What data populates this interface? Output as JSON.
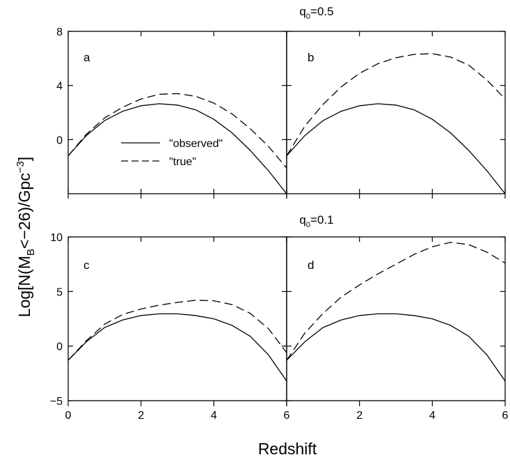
{
  "figure": {
    "ylabel_main": "Log[N(M",
    "ylabel_sub": "B",
    "ylabel_mid": "<−26)/Gpc",
    "ylabel_sup": "−3",
    "ylabel_end": "]",
    "xlabel": "Redshift",
    "rows": [
      {
        "title_main": "q",
        "title_sub": "0",
        "title_rest": "=0.5"
      },
      {
        "title_main": "q",
        "title_sub": "0",
        "title_rest": "=0.1"
      }
    ]
  },
  "chart_data": [
    {
      "type": "line",
      "panel_label": "a",
      "xlim": [
        0,
        6
      ],
      "ylim": [
        -4,
        8
      ],
      "xticks": [
        0,
        2,
        4,
        6
      ],
      "yticks": [
        0,
        4,
        8
      ],
      "ytick_labels": [
        "0",
        "4",
        "8"
      ],
      "xtick_labels": [],
      "legend": {
        "position": "center-left",
        "entries": [
          "\"observed\"",
          "\"true\""
        ]
      },
      "series": [
        {
          "name": "\"observed\"",
          "style": "solid",
          "x": [
            0,
            0.5,
            1,
            1.5,
            2,
            2.5,
            3,
            3.5,
            4,
            4.5,
            5,
            5.5,
            6
          ],
          "y": [
            -1.2,
            0.3,
            1.4,
            2.1,
            2.5,
            2.65,
            2.55,
            2.2,
            1.5,
            0.5,
            -0.8,
            -2.3,
            -4.0
          ]
        },
        {
          "name": "\"true\"",
          "style": "dashed",
          "x": [
            0,
            0.5,
            1,
            1.5,
            2,
            2.5,
            3,
            3.5,
            4,
            4.5,
            5,
            5.5,
            6
          ],
          "y": [
            -1.2,
            0.4,
            1.6,
            2.4,
            3.0,
            3.35,
            3.4,
            3.2,
            2.7,
            1.9,
            0.8,
            -0.5,
            -2.1
          ]
        }
      ]
    },
    {
      "type": "line",
      "panel_label": "b",
      "xlim": [
        0,
        6
      ],
      "ylim": [
        -4,
        8
      ],
      "xticks": [
        0,
        2,
        4,
        6
      ],
      "yticks": [
        0,
        4,
        8
      ],
      "ytick_labels": [],
      "xtick_labels": [],
      "series": [
        {
          "name": "\"observed\"",
          "style": "solid",
          "x": [
            0,
            0.5,
            1,
            1.5,
            2,
            2.5,
            3,
            3.5,
            4,
            4.5,
            5,
            5.5,
            6
          ],
          "y": [
            -1.2,
            0.3,
            1.4,
            2.1,
            2.5,
            2.65,
            2.55,
            2.2,
            1.5,
            0.5,
            -0.8,
            -2.3,
            -4.0
          ]
        },
        {
          "name": "\"true\"",
          "style": "dashed",
          "x": [
            0,
            0.5,
            1,
            1.5,
            2,
            2.5,
            3,
            3.5,
            4,
            4.5,
            5,
            5.5,
            6
          ],
          "y": [
            -1.2,
            1.0,
            2.6,
            3.9,
            4.9,
            5.6,
            6.05,
            6.3,
            6.35,
            6.1,
            5.5,
            4.4,
            3.0
          ]
        }
      ]
    },
    {
      "type": "line",
      "panel_label": "c",
      "xlim": [
        0,
        6
      ],
      "ylim": [
        -5,
        10
      ],
      "xticks": [
        0,
        2,
        4,
        6
      ],
      "yticks": [
        -5,
        0,
        5,
        10
      ],
      "ytick_labels": [
        "−5",
        "0",
        "5",
        "10"
      ],
      "xtick_labels": [
        "0",
        "2",
        "4",
        "6"
      ],
      "series": [
        {
          "name": "\"observed\"",
          "style": "solid",
          "x": [
            0,
            0.5,
            1,
            1.5,
            2,
            2.5,
            3,
            3.5,
            4,
            4.5,
            5,
            5.5,
            6
          ],
          "y": [
            -1.3,
            0.4,
            1.7,
            2.4,
            2.8,
            2.95,
            2.95,
            2.8,
            2.5,
            1.9,
            0.9,
            -0.8,
            -3.2
          ]
        },
        {
          "name": "\"true\"",
          "style": "dashed",
          "x": [
            0,
            0.5,
            1,
            1.5,
            2,
            2.5,
            3,
            3.5,
            4,
            4.5,
            5,
            5.5,
            6
          ],
          "y": [
            -1.3,
            0.5,
            2.0,
            2.9,
            3.4,
            3.75,
            4.0,
            4.2,
            4.15,
            3.8,
            3.0,
            1.6,
            -0.6
          ]
        }
      ]
    },
    {
      "type": "line",
      "panel_label": "d",
      "xlim": [
        0,
        6
      ],
      "ylim": [
        -5,
        10
      ],
      "xticks": [
        0,
        2,
        4,
        6
      ],
      "yticks": [
        -5,
        0,
        5,
        10
      ],
      "ytick_labels": [],
      "xtick_labels": [
        "2",
        "4",
        "6"
      ],
      "series": [
        {
          "name": "\"observed\"",
          "style": "solid",
          "x": [
            0,
            0.5,
            1,
            1.5,
            2,
            2.5,
            3,
            3.5,
            4,
            4.5,
            5,
            5.5,
            6
          ],
          "y": [
            -1.3,
            0.4,
            1.7,
            2.4,
            2.8,
            2.95,
            2.95,
            2.8,
            2.5,
            1.9,
            0.9,
            -0.8,
            -3.2
          ]
        },
        {
          "name": "\"true\"",
          "style": "dashed",
          "x": [
            0,
            0.5,
            1,
            1.5,
            2,
            2.5,
            3,
            3.5,
            4,
            4.5,
            5,
            5.5,
            6
          ],
          "y": [
            -1.3,
            1.2,
            3.0,
            4.5,
            5.6,
            6.6,
            7.5,
            8.4,
            9.1,
            9.5,
            9.3,
            8.6,
            7.6
          ]
        }
      ]
    }
  ]
}
